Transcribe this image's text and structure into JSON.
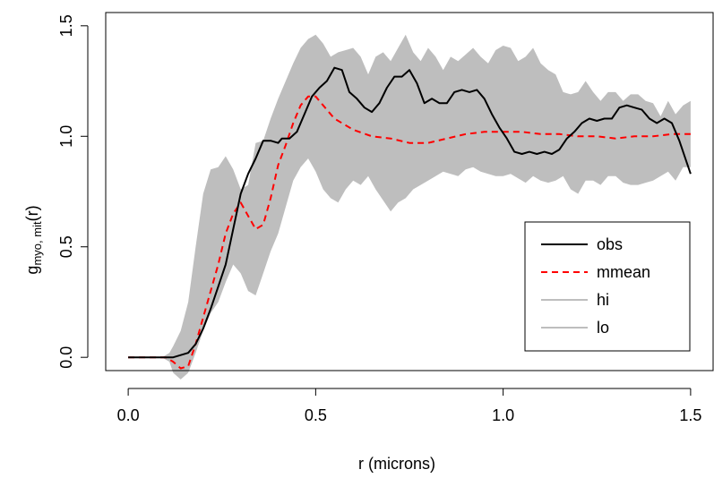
{
  "chart_data": {
    "type": "line",
    "title": "",
    "xlabel": "r (microns)",
    "ylabel_main": "g",
    "ylabel_sub": "myo, mit",
    "ylabel_suffix": "(r)",
    "xlim": [
      -0.06,
      1.56
    ],
    "ylim": [
      -0.06,
      1.56
    ],
    "x_ticks": [
      0.0,
      0.5,
      1.0,
      1.5
    ],
    "x_tick_labels": [
      "0.0",
      "0.5",
      "1.0",
      "1.5"
    ],
    "y_ticks": [
      0.0,
      0.5,
      1.0,
      1.5
    ],
    "y_tick_labels": [
      "0.0",
      "0.5",
      "1.0",
      "1.5"
    ],
    "grid": false,
    "legend_position": "bottom-right",
    "band": {
      "color": "#bebebe",
      "x": [
        0.0,
        0.09,
        0.11,
        0.12,
        0.14,
        0.16,
        0.18,
        0.2,
        0.22,
        0.24,
        0.26,
        0.28,
        0.3,
        0.32,
        0.34,
        0.36,
        0.38,
        0.4,
        0.42,
        0.44,
        0.46,
        0.48,
        0.5,
        0.52,
        0.54,
        0.56,
        0.58,
        0.6,
        0.62,
        0.64,
        0.66,
        0.68,
        0.7,
        0.72,
        0.74,
        0.76,
        0.78,
        0.8,
        0.82,
        0.84,
        0.86,
        0.88,
        0.9,
        0.92,
        0.94,
        0.96,
        0.98,
        1.0,
        1.02,
        1.04,
        1.06,
        1.08,
        1.1,
        1.12,
        1.14,
        1.16,
        1.18,
        1.2,
        1.22,
        1.24,
        1.26,
        1.28,
        1.3,
        1.32,
        1.34,
        1.36,
        1.38,
        1.4,
        1.42,
        1.44,
        1.46,
        1.48,
        1.5
      ],
      "hi": [
        0.0,
        0.0,
        0.02,
        0.05,
        0.12,
        0.25,
        0.5,
        0.74,
        0.85,
        0.86,
        0.91,
        0.85,
        0.76,
        0.78,
        0.97,
        0.98,
        1.08,
        1.17,
        1.25,
        1.33,
        1.4,
        1.44,
        1.46,
        1.42,
        1.36,
        1.38,
        1.39,
        1.4,
        1.36,
        1.28,
        1.36,
        1.38,
        1.34,
        1.4,
        1.46,
        1.38,
        1.34,
        1.4,
        1.36,
        1.3,
        1.36,
        1.34,
        1.37,
        1.4,
        1.36,
        1.33,
        1.39,
        1.41,
        1.4,
        1.34,
        1.36,
        1.4,
        1.33,
        1.3,
        1.28,
        1.2,
        1.19,
        1.2,
        1.25,
        1.2,
        1.16,
        1.2,
        1.2,
        1.16,
        1.19,
        1.19,
        1.16,
        1.15,
        1.09,
        1.16,
        1.1,
        1.14,
        1.16
      ],
      "lo": [
        0.0,
        0.0,
        -0.02,
        -0.07,
        -0.1,
        -0.07,
        0.02,
        0.12,
        0.2,
        0.25,
        0.34,
        0.42,
        0.38,
        0.3,
        0.28,
        0.38,
        0.48,
        0.56,
        0.68,
        0.8,
        0.86,
        0.9,
        0.84,
        0.76,
        0.72,
        0.7,
        0.76,
        0.8,
        0.78,
        0.82,
        0.76,
        0.71,
        0.66,
        0.7,
        0.72,
        0.76,
        0.78,
        0.8,
        0.82,
        0.84,
        0.83,
        0.82,
        0.85,
        0.86,
        0.84,
        0.83,
        0.82,
        0.82,
        0.83,
        0.81,
        0.79,
        0.82,
        0.8,
        0.79,
        0.8,
        0.82,
        0.76,
        0.74,
        0.8,
        0.8,
        0.78,
        0.82,
        0.82,
        0.79,
        0.78,
        0.78,
        0.79,
        0.8,
        0.82,
        0.84,
        0.8,
        0.86,
        0.86
      ]
    },
    "series": [
      {
        "name": "obs",
        "color": "#000000",
        "dash": "solid",
        "x": [
          0.0,
          0.06,
          0.12,
          0.14,
          0.16,
          0.18,
          0.2,
          0.22,
          0.24,
          0.26,
          0.28,
          0.3,
          0.32,
          0.34,
          0.36,
          0.38,
          0.4,
          0.41,
          0.43,
          0.45,
          0.47,
          0.49,
          0.51,
          0.53,
          0.55,
          0.57,
          0.59,
          0.61,
          0.63,
          0.65,
          0.67,
          0.69,
          0.71,
          0.73,
          0.75,
          0.77,
          0.79,
          0.81,
          0.83,
          0.85,
          0.87,
          0.89,
          0.91,
          0.93,
          0.95,
          0.97,
          0.99,
          1.01,
          1.03,
          1.05,
          1.07,
          1.09,
          1.11,
          1.13,
          1.15,
          1.17,
          1.19,
          1.21,
          1.23,
          1.25,
          1.27,
          1.29,
          1.31,
          1.33,
          1.35,
          1.37,
          1.39,
          1.41,
          1.43,
          1.45,
          1.47,
          1.49,
          1.5
        ],
        "y": [
          0.0,
          0.0,
          0.0,
          0.01,
          0.02,
          0.06,
          0.13,
          0.22,
          0.32,
          0.42,
          0.58,
          0.74,
          0.83,
          0.9,
          0.98,
          0.98,
          0.97,
          0.99,
          0.99,
          1.02,
          1.1,
          1.18,
          1.22,
          1.25,
          1.31,
          1.3,
          1.2,
          1.17,
          1.13,
          1.11,
          1.15,
          1.22,
          1.27,
          1.27,
          1.3,
          1.24,
          1.15,
          1.17,
          1.15,
          1.15,
          1.2,
          1.21,
          1.2,
          1.21,
          1.17,
          1.1,
          1.04,
          0.99,
          0.93,
          0.92,
          0.93,
          0.92,
          0.93,
          0.92,
          0.94,
          0.99,
          1.02,
          1.06,
          1.08,
          1.07,
          1.08,
          1.08,
          1.13,
          1.14,
          1.13,
          1.12,
          1.08,
          1.06,
          1.08,
          1.06,
          0.98,
          0.88,
          0.83
        ]
      },
      {
        "name": "mmean",
        "color": "#ff0000",
        "dash": "dashed",
        "x": [
          0.0,
          0.06,
          0.1,
          0.12,
          0.14,
          0.16,
          0.18,
          0.2,
          0.22,
          0.24,
          0.26,
          0.28,
          0.3,
          0.32,
          0.34,
          0.36,
          0.38,
          0.4,
          0.42,
          0.44,
          0.46,
          0.48,
          0.5,
          0.52,
          0.55,
          0.6,
          0.65,
          0.7,
          0.75,
          0.8,
          0.85,
          0.9,
          0.95,
          1.0,
          1.05,
          1.1,
          1.15,
          1.2,
          1.25,
          1.3,
          1.35,
          1.4,
          1.45,
          1.5
        ],
        "y": [
          0.0,
          0.0,
          0.0,
          -0.02,
          -0.05,
          -0.04,
          0.06,
          0.18,
          0.3,
          0.42,
          0.56,
          0.65,
          0.7,
          0.64,
          0.58,
          0.6,
          0.72,
          0.87,
          0.96,
          1.06,
          1.14,
          1.18,
          1.18,
          1.14,
          1.08,
          1.03,
          1.0,
          0.99,
          0.97,
          0.97,
          0.99,
          1.01,
          1.02,
          1.02,
          1.02,
          1.01,
          1.01,
          1.0,
          1.0,
          0.99,
          1.0,
          1.0,
          1.01,
          1.01
        ]
      }
    ],
    "legend": [
      {
        "label": "obs",
        "color": "#000000",
        "dash": "solid"
      },
      {
        "label": "mmean",
        "color": "#ff0000",
        "dash": "dashed"
      },
      {
        "label": "hi",
        "color": "#bebebe",
        "dash": "solid"
      },
      {
        "label": "lo",
        "color": "#bebebe",
        "dash": "solid"
      }
    ]
  }
}
